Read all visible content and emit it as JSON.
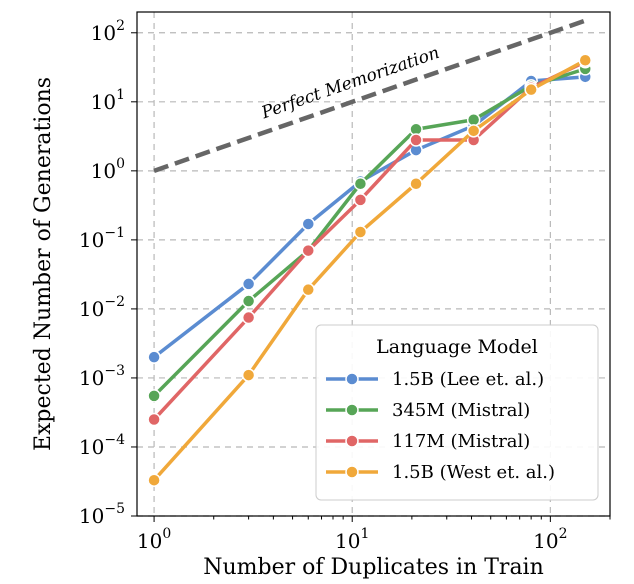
{
  "chart_data": {
    "type": "line",
    "xlabel": "Number of Duplicates in Train",
    "ylabel": "Expected Number of Generations",
    "x_scale": "log",
    "y_scale": "log",
    "xlim": [
      0.82,
      200
    ],
    "ylim": [
      1e-05,
      200
    ],
    "x_ticks": [
      {
        "value": 1,
        "base": "10",
        "exp": "0"
      },
      {
        "value": 10,
        "base": "10",
        "exp": "1"
      },
      {
        "value": 100,
        "base": "10",
        "exp": "2"
      }
    ],
    "y_ticks": [
      {
        "value": 1e-05,
        "base": "10",
        "exp": "−5"
      },
      {
        "value": 0.0001,
        "base": "10",
        "exp": "−4"
      },
      {
        "value": 0.001,
        "base": "10",
        "exp": "−3"
      },
      {
        "value": 0.01,
        "base": "10",
        "exp": "−2"
      },
      {
        "value": 0.1,
        "base": "10",
        "exp": "−1"
      },
      {
        "value": 1,
        "base": "10",
        "exp": "0"
      },
      {
        "value": 10,
        "base": "10",
        "exp": "1"
      },
      {
        "value": 100,
        "base": "10",
        "exp": "2"
      }
    ],
    "grid": true,
    "legend_title": "Language Model",
    "legend_position": "bottom-right",
    "reference_line": {
      "label": "Perfect Memorization",
      "x": [
        1,
        150
      ],
      "y": [
        1,
        150
      ],
      "color": "#666666"
    },
    "series": [
      {
        "name": "1.5B (Lee et. al.)",
        "color": "#5b8cd1",
        "x": [
          1,
          3,
          6,
          11,
          21,
          41,
          80,
          150
        ],
        "y": [
          0.002,
          0.023,
          0.17,
          0.7,
          2.0,
          4.5,
          20,
          23
        ]
      },
      {
        "name": "345M (Mistral)",
        "color": "#57a557",
        "x": [
          1,
          3,
          6,
          11,
          21,
          41,
          80,
          150
        ],
        "y": [
          0.00055,
          0.013,
          0.07,
          0.65,
          4.0,
          5.5,
          17,
          30
        ]
      },
      {
        "name": "117M (Mistral)",
        "color": "#e06666",
        "x": [
          1,
          3,
          6,
          11,
          21,
          41,
          80,
          150
        ],
        "y": [
          0.00025,
          0.0075,
          0.07,
          0.38,
          2.8,
          2.8,
          16,
          38
        ]
      },
      {
        "name": "1.5B (West et. al.)",
        "color": "#f0a83a",
        "x": [
          1,
          3,
          6,
          11,
          21,
          41,
          80,
          150
        ],
        "y": [
          3.3e-05,
          0.0011,
          0.019,
          0.13,
          0.65,
          3.8,
          15,
          40
        ]
      }
    ]
  }
}
